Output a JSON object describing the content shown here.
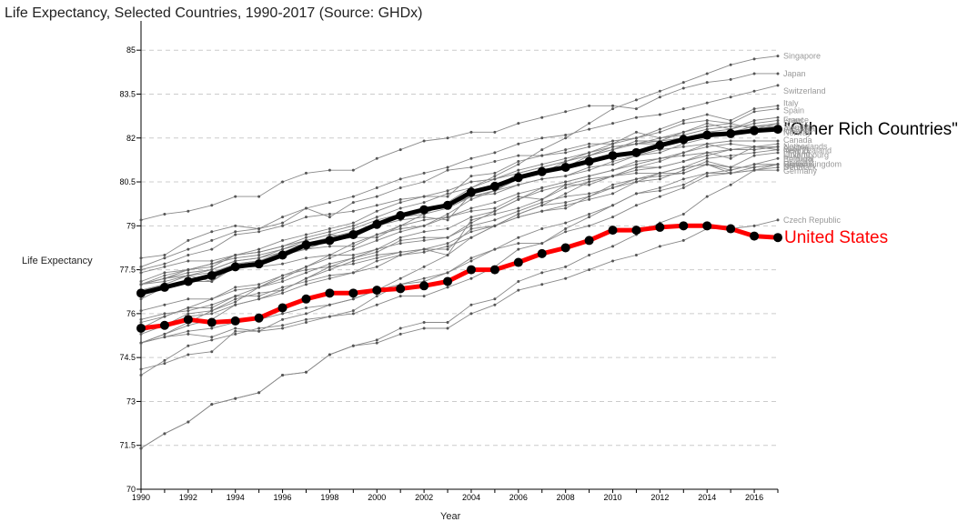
{
  "chart_data": {
    "type": "line",
    "title": "Life Expectancy, Selected Countries, 1990-2017 (Source: GHDx)",
    "xlabel": "Year",
    "ylabel": "Life Expectancy",
    "xlim": [
      1990,
      2017
    ],
    "ylim": [
      70,
      86
    ],
    "x_ticks": [
      "1990",
      "1992",
      "1994",
      "1996",
      "1998",
      "2000",
      "2002",
      "2004",
      "2006",
      "2008",
      "2010",
      "2012",
      "2014",
      "2016"
    ],
    "y_ticks": [
      "70",
      "71.5",
      "73",
      "74.5",
      "76",
      "77.5",
      "79",
      "80.5",
      "82",
      "83.5",
      "85"
    ],
    "grid": "horizontal dashed",
    "x": [
      1990,
      1991,
      1992,
      1993,
      1994,
      1995,
      1996,
      1997,
      1998,
      1999,
      2000,
      2001,
      2002,
      2003,
      2004,
      2005,
      2006,
      2007,
      2008,
      2009,
      2010,
      2011,
      2012,
      2013,
      2014,
      2015,
      2016,
      2017
    ],
    "colors": {
      "highlight_primary": "#000000",
      "highlight_secondary": "#ff0000",
      "background_series": "#888888"
    },
    "series": [
      {
        "name": "United States",
        "emphasis": "red",
        "values": [
          75.5,
          75.6,
          75.8,
          75.7,
          75.75,
          75.85,
          76.2,
          76.5,
          76.7,
          76.7,
          76.8,
          76.85,
          76.95,
          77.1,
          77.5,
          77.5,
          77.75,
          78.05,
          78.25,
          78.5,
          78.85,
          78.85,
          78.95,
          79.0,
          79.0,
          78.9,
          78.65,
          78.6
        ]
      },
      {
        "name": "\"Other Rich Countries\"",
        "emphasis": "black",
        "values": [
          76.7,
          76.9,
          77.1,
          77.3,
          77.6,
          77.7,
          78.0,
          78.35,
          78.5,
          78.7,
          79.05,
          79.35,
          79.55,
          79.7,
          80.15,
          80.35,
          80.65,
          80.85,
          81.0,
          81.2,
          81.4,
          81.5,
          81.75,
          81.95,
          82.1,
          82.15,
          82.25,
          82.3
        ]
      },
      {
        "name": "Singapore",
        "values": [
          75.0,
          75.3,
          75.7,
          76.1,
          76.4,
          76.9,
          77.2,
          77.6,
          78.0,
          78.4,
          78.7,
          79.0,
          79.4,
          79.8,
          80.3,
          80.7,
          81.1,
          81.6,
          82.0,
          82.5,
          83.0,
          83.3,
          83.6,
          83.9,
          84.2,
          84.5,
          84.7,
          84.8
        ]
      },
      {
        "name": "Japan",
        "values": [
          79.2,
          79.4,
          79.5,
          79.7,
          80.0,
          80.0,
          80.5,
          80.8,
          80.9,
          80.9,
          81.3,
          81.6,
          81.9,
          82.0,
          82.2,
          82.2,
          82.5,
          82.7,
          82.9,
          83.1,
          83.1,
          83.0,
          83.4,
          83.7,
          83.9,
          84.0,
          84.2,
          84.2
        ]
      },
      {
        "name": "Switzerland",
        "values": [
          77.6,
          77.9,
          78.2,
          78.5,
          78.8,
          78.9,
          79.3,
          79.6,
          79.8,
          80.0,
          80.3,
          80.6,
          80.8,
          81.0,
          81.3,
          81.5,
          81.8,
          82.0,
          82.1,
          82.3,
          82.5,
          82.7,
          82.8,
          83.0,
          83.2,
          83.4,
          83.6,
          83.8
        ]
      },
      {
        "name": "Italy",
        "values": [
          77.0,
          77.2,
          77.5,
          77.7,
          78.0,
          78.2,
          78.5,
          78.7,
          78.9,
          79.1,
          79.5,
          79.8,
          80.0,
          80.0,
          80.7,
          80.8,
          81.2,
          81.4,
          81.5,
          81.7,
          81.9,
          82.0,
          82.3,
          82.6,
          82.8,
          82.6,
          83.0,
          83.1
        ]
      },
      {
        "name": "Israel",
        "values": [
          76.8,
          77.0,
          77.3,
          77.4,
          77.7,
          77.8,
          78.0,
          78.2,
          78.5,
          78.8,
          79.0,
          79.3,
          79.6,
          79.7,
          80.0,
          80.2,
          80.6,
          80.8,
          81.0,
          81.4,
          81.7,
          81.8,
          81.9,
          82.0,
          82.2,
          82.3,
          82.5,
          82.6
        ]
      },
      {
        "name": "Spain",
        "values": [
          77.0,
          77.1,
          77.3,
          77.5,
          77.8,
          77.9,
          78.1,
          78.4,
          78.5,
          78.6,
          79.0,
          79.3,
          79.4,
          79.6,
          80.0,
          80.2,
          80.7,
          80.8,
          81.2,
          81.5,
          81.8,
          82.0,
          82.2,
          82.5,
          82.6,
          82.5,
          82.9,
          83.0
        ]
      },
      {
        "name": "France",
        "values": [
          77.0,
          77.2,
          77.4,
          77.5,
          77.8,
          77.9,
          78.2,
          78.4,
          78.6,
          78.8,
          79.0,
          79.2,
          79.3,
          79.2,
          80.1,
          80.3,
          80.8,
          81.0,
          81.2,
          81.4,
          81.6,
          81.9,
          81.9,
          82.2,
          82.5,
          82.3,
          82.6,
          82.7
        ]
      },
      {
        "name": "Sweden",
        "values": [
          77.5,
          77.7,
          78.0,
          78.2,
          78.7,
          78.8,
          79.0,
          79.3,
          79.4,
          79.5,
          79.7,
          79.9,
          80.0,
          80.2,
          80.5,
          80.6,
          80.8,
          81.0,
          81.2,
          81.4,
          81.6,
          81.8,
          81.8,
          82.0,
          82.2,
          82.2,
          82.3,
          82.5
        ]
      },
      {
        "name": "Iceland",
        "values": [
          77.9,
          78.0,
          78.5,
          78.8,
          79.0,
          78.9,
          79.1,
          79.6,
          79.3,
          79.8,
          80.0,
          80.3,
          80.5,
          80.9,
          81.0,
          81.2,
          81.4,
          81.4,
          81.6,
          81.8,
          81.8,
          82.2,
          82.0,
          82.2,
          82.4,
          82.5,
          82.3,
          82.4
        ]
      },
      {
        "name": "Australia",
        "values": [
          77.0,
          77.3,
          77.5,
          77.6,
          78.0,
          78.1,
          78.3,
          78.6,
          78.8,
          79.0,
          79.3,
          79.6,
          79.8,
          80.1,
          80.3,
          80.6,
          80.9,
          81.1,
          81.3,
          81.5,
          81.7,
          81.8,
          82.0,
          82.1,
          82.3,
          82.4,
          82.4,
          82.5
        ]
      },
      {
        "name": "Norway",
        "values": [
          76.5,
          76.9,
          77.1,
          77.1,
          77.7,
          77.8,
          78.1,
          78.2,
          78.3,
          78.3,
          78.7,
          78.9,
          79.0,
          79.4,
          79.9,
          80.2,
          80.4,
          80.6,
          80.7,
          81.0,
          81.1,
          81.4,
          81.5,
          81.8,
          82.0,
          82.2,
          82.4,
          82.4
        ]
      },
      {
        "name": "Canada",
        "values": [
          77.4,
          77.6,
          77.8,
          77.8,
          78.0,
          78.1,
          78.3,
          78.5,
          78.7,
          78.9,
          79.2,
          79.4,
          79.5,
          79.7,
          80.0,
          80.1,
          80.4,
          80.6,
          80.7,
          80.9,
          81.2,
          81.4,
          81.6,
          81.7,
          81.8,
          81.9,
          81.9,
          81.9
        ]
      },
      {
        "name": "Austria",
        "values": [
          75.8,
          76.0,
          76.1,
          76.3,
          76.6,
          76.9,
          77.1,
          77.4,
          77.7,
          77.9,
          78.2,
          78.6,
          78.8,
          78.9,
          79.3,
          79.5,
          79.9,
          80.2,
          80.4,
          80.4,
          80.7,
          81.0,
          81.0,
          81.2,
          81.5,
          81.3,
          81.7,
          81.7
        ]
      },
      {
        "name": "Korea",
        "values": [
          71.4,
          71.9,
          72.3,
          72.9,
          73.1,
          73.3,
          73.9,
          74.0,
          74.6,
          74.9,
          75.1,
          75.5,
          75.7,
          75.7,
          76.3,
          76.5,
          77.1,
          77.4,
          77.6,
          78.0,
          78.3,
          78.7,
          79.1,
          79.4,
          80.0,
          80.4,
          80.9,
          81.1
        ]
      },
      {
        "name": "Netherlands",
        "values": [
          77.0,
          77.2,
          77.3,
          77.1,
          77.6,
          77.6,
          77.7,
          77.9,
          78.0,
          78.0,
          78.2,
          78.4,
          78.5,
          78.6,
          79.1,
          79.5,
          79.9,
          80.3,
          80.5,
          80.7,
          80.9,
          81.2,
          81.3,
          81.5,
          81.8,
          81.6,
          81.7,
          81.8
        ]
      },
      {
        "name": "New Zealand",
        "values": [
          75.5,
          75.9,
          76.2,
          76.5,
          76.9,
          77.0,
          77.3,
          77.6,
          77.9,
          78.2,
          78.5,
          78.8,
          79.0,
          79.3,
          79.6,
          79.8,
          80.1,
          80.3,
          80.5,
          80.7,
          80.9,
          81.1,
          81.3,
          81.4,
          81.5,
          81.6,
          81.6,
          81.7
        ]
      },
      {
        "name": "Ireland",
        "values": [
          75.0,
          75.2,
          75.4,
          75.5,
          75.7,
          75.8,
          76.0,
          76.2,
          76.3,
          76.5,
          76.8,
          77.2,
          77.6,
          78.0,
          78.6,
          79.0,
          79.4,
          79.7,
          80.1,
          80.5,
          80.7,
          80.9,
          81.0,
          81.2,
          81.4,
          81.6,
          81.6,
          81.7
        ]
      },
      {
        "name": "Finland",
        "values": [
          75.0,
          75.3,
          75.6,
          75.8,
          76.3,
          76.5,
          76.7,
          77.0,
          77.2,
          77.4,
          77.6,
          78.0,
          78.2,
          78.4,
          78.8,
          79.0,
          79.3,
          79.5,
          79.7,
          79.9,
          80.1,
          80.5,
          80.8,
          81.0,
          81.3,
          81.4,
          81.5,
          81.6
        ]
      },
      {
        "name": "Luxembourg",
        "values": [
          75.4,
          75.6,
          76.0,
          76.1,
          76.5,
          76.7,
          76.8,
          77.2,
          77.5,
          77.8,
          78.0,
          78.1,
          78.2,
          78.0,
          79.2,
          79.4,
          79.6,
          79.9,
          80.3,
          80.5,
          80.7,
          81.0,
          81.2,
          81.5,
          81.7,
          81.8,
          81.7,
          81.6
        ]
      },
      {
        "name": "Belgium",
        "values": [
          76.1,
          76.3,
          76.5,
          76.5,
          76.8,
          76.9,
          77.3,
          77.5,
          77.6,
          77.7,
          77.9,
          78.1,
          78.2,
          78.2,
          78.9,
          79.0,
          79.4,
          79.7,
          79.8,
          80.0,
          80.3,
          80.5,
          80.6,
          80.9,
          81.2,
          81.0,
          81.4,
          81.5
        ]
      },
      {
        "name": "United Kingdom",
        "values": [
          75.7,
          75.9,
          76.2,
          76.2,
          76.6,
          76.6,
          76.9,
          77.1,
          77.3,
          77.4,
          77.8,
          78.0,
          78.1,
          78.3,
          78.6,
          79.0,
          79.3,
          79.5,
          79.6,
          80.0,
          80.4,
          80.6,
          80.7,
          80.8,
          81.1,
          80.9,
          81.1,
          81.1
        ]
      },
      {
        "name": "Denmark",
        "values": [
          75.0,
          75.2,
          75.3,
          75.2,
          75.5,
          75.4,
          75.8,
          76.0,
          76.3,
          76.5,
          76.8,
          77.0,
          77.1,
          77.4,
          77.8,
          78.2,
          78.4,
          78.4,
          78.8,
          79.0,
          79.3,
          79.7,
          80.0,
          80.3,
          80.7,
          80.8,
          80.9,
          81.0
        ]
      },
      {
        "name": "Germany",
        "values": [
          75.3,
          75.6,
          75.9,
          76.0,
          76.3,
          76.5,
          76.8,
          77.2,
          77.6,
          77.9,
          78.1,
          78.5,
          78.6,
          78.6,
          79.0,
          79.2,
          79.5,
          79.8,
          80.0,
          80.1,
          80.3,
          80.6,
          80.8,
          80.8,
          81.1,
          80.8,
          80.9,
          80.9
        ]
      },
      {
        "name": "Greece",
        "values": [
          77.1,
          77.4,
          77.5,
          77.7,
          77.9,
          78.0,
          78.2,
          78.5,
          78.7,
          78.6,
          78.6,
          79.0,
          79.2,
          79.3,
          79.5,
          79.6,
          80.0,
          79.9,
          80.4,
          80.6,
          80.7,
          80.8,
          80.8,
          81.0,
          81.1,
          81.0,
          81.0,
          81.1
        ]
      },
      {
        "name": "Portugal",
        "values": [
          74.1,
          74.3,
          74.6,
          74.7,
          75.4,
          75.4,
          75.5,
          75.7,
          75.9,
          76.1,
          76.6,
          77.0,
          77.2,
          77.4,
          77.9,
          78.2,
          78.6,
          78.9,
          79.1,
          79.4,
          79.7,
          80.1,
          80.3,
          80.6,
          80.8,
          80.9,
          81.1,
          81.3
        ]
      },
      {
        "name": "Slovenia",
        "values": [
          73.9,
          74.4,
          74.9,
          75.1,
          75.3,
          75.5,
          75.6,
          75.8,
          75.9,
          76.0,
          76.3,
          76.6,
          76.6,
          76.9,
          77.2,
          77.6,
          78.2,
          78.4,
          78.9,
          79.3,
          79.7,
          80.1,
          80.2,
          80.4,
          80.8,
          80.8,
          81.0,
          81.1
        ]
      },
      {
        "name": "Czech Republic",
        "values": [
          71.4,
          71.9,
          72.3,
          72.9,
          73.1,
          73.3,
          73.9,
          74.0,
          74.6,
          74.9,
          75.0,
          75.3,
          75.5,
          75.5,
          76.0,
          76.3,
          76.8,
          77.0,
          77.2,
          77.5,
          77.8,
          78.0,
          78.3,
          78.5,
          78.9,
          78.9,
          79.0,
          79.2
        ]
      }
    ],
    "end_labels": {
      "Singapore": "Singapore",
      "Japan": "Japan",
      "Switzerland": "Switzerland",
      "Italy": "Italy",
      "Israel": "Israel",
      "Spain": "Spain",
      "France": "France",
      "Sweden": "Sweden",
      "Iceland": "Iceland",
      "Australia": "Australia",
      "Norway": "Norway",
      "Canada": "Canada",
      "Austria": "Austria",
      "Korea": "Korea",
      "Netherlands": "Netherlands",
      "New Zealand": "New Zealand",
      "Ireland": "Ireland",
      "Finland": "Finland",
      "Luxembourg": "Luxembourg",
      "Belgium": "Belgium",
      "United Kingdom": "United Kingdom",
      "Denmark": "Denmark",
      "Germany": "Germany",
      "Greece": "Greece",
      "Portugal": "Portugal",
      "Slovenia": "Slovenia",
      "Czech Republic": "Czech Republic",
      "United States": "United States",
      "\"Other Rich Countries\"": "\"Other Rich Countries\""
    }
  }
}
